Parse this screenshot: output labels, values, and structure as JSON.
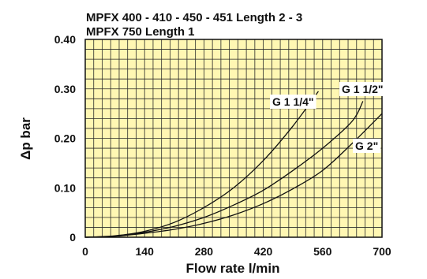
{
  "chart_data": {
    "type": "line",
    "title_lines": [
      "MPFX 400 - 410 - 450 - 451 Length 2 - 3",
      "MPFX 750 Length 1"
    ],
    "xlabel": "Flow rate l/min",
    "ylabel": "Δp bar",
    "xlim": [
      0,
      700
    ],
    "ylim": [
      0,
      0.4
    ],
    "x_ticks": [
      "0",
      "140",
      "280",
      "420",
      "560",
      "700"
    ],
    "y_ticks": [
      "0",
      "0.10",
      "0.20",
      "0.30",
      "0.40"
    ],
    "grid": true,
    "plot_background": "#fff7b3",
    "grid_color": "#2a2a2a",
    "series": [
      {
        "name": "G 1 1/4\"",
        "x": [
          0,
          70,
          140,
          210,
          280,
          350,
          420,
          490,
          550
        ],
        "y": [
          0,
          0.003,
          0.012,
          0.03,
          0.06,
          0.1,
          0.155,
          0.225,
          0.295
        ]
      },
      {
        "name": "G 1 1/2\"",
        "x": [
          0,
          70,
          140,
          210,
          280,
          350,
          420,
          490,
          560,
          630,
          655
        ],
        "y": [
          0,
          0.002,
          0.01,
          0.022,
          0.04,
          0.065,
          0.095,
          0.135,
          0.18,
          0.235,
          0.275
        ]
      },
      {
        "name": "G 2\"",
        "x": [
          0,
          70,
          140,
          210,
          280,
          350,
          420,
          490,
          560,
          630,
          700
        ],
        "y": [
          0,
          0.002,
          0.008,
          0.016,
          0.028,
          0.045,
          0.068,
          0.098,
          0.135,
          0.19,
          0.25
        ]
      }
    ]
  }
}
